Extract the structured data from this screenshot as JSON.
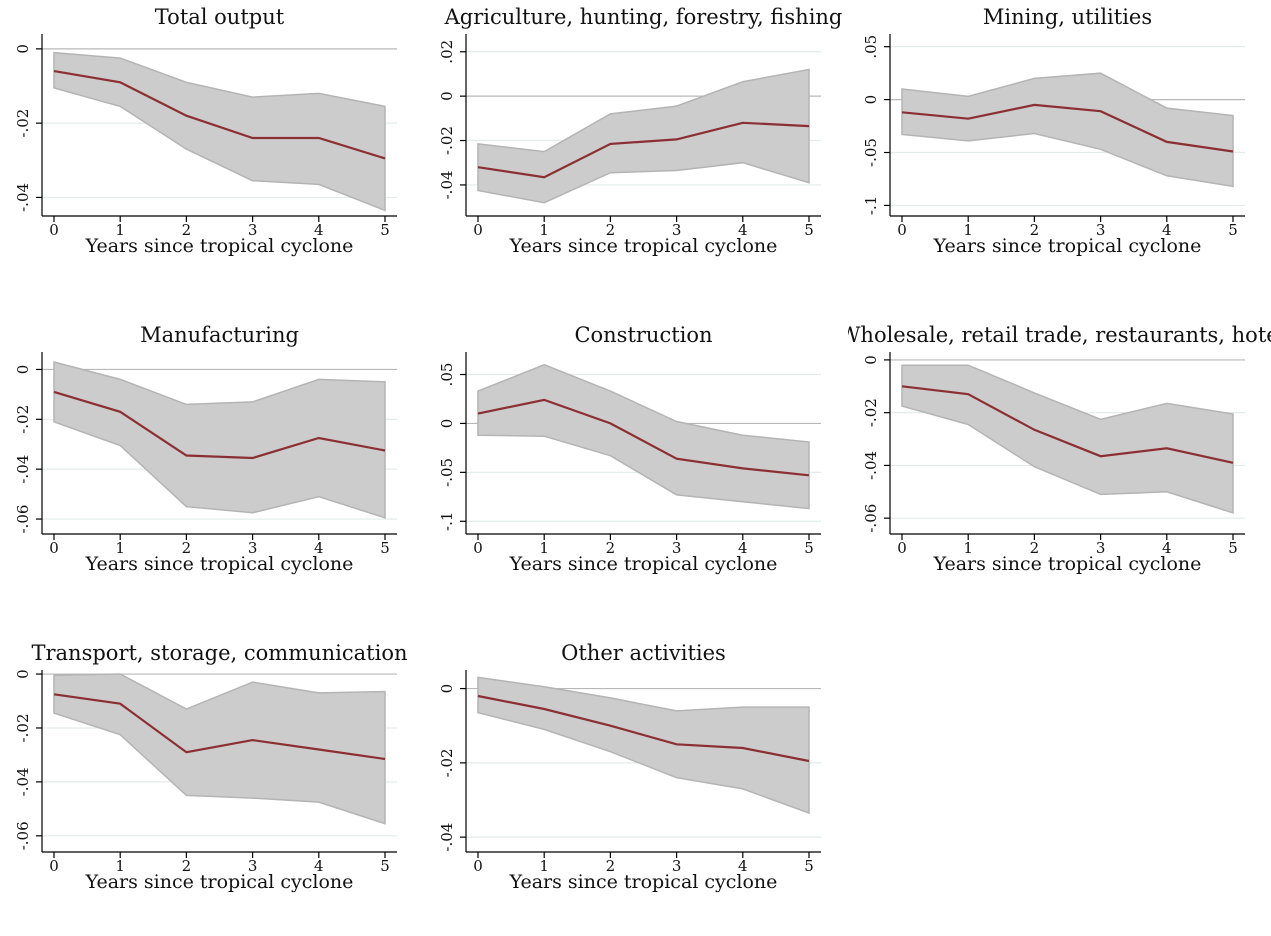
{
  "chart_data": [
    {
      "type": "line",
      "title": "Total output",
      "xlabel": "Years since tropical cyclone",
      "x": [
        0,
        1,
        2,
        3,
        4,
        5
      ],
      "ylim": [
        -0.045,
        0.004
      ],
      "yticks": [
        0,
        -0.02,
        -0.04
      ],
      "ytick_labels": [
        "0",
        "-.02",
        "-.04"
      ],
      "series": [
        {
          "role": "estimate",
          "values": [
            -0.006,
            -0.009,
            -0.018,
            -0.024,
            -0.024,
            -0.0295
          ]
        },
        {
          "role": "ci_upper",
          "values": [
            -0.001,
            -0.0025,
            -0.009,
            -0.013,
            -0.012,
            -0.0155
          ]
        },
        {
          "role": "ci_lower",
          "values": [
            -0.0105,
            -0.0155,
            -0.027,
            -0.0355,
            -0.0365,
            -0.0435
          ]
        }
      ]
    },
    {
      "type": "line",
      "title": "Agriculture, hunting, forestry, fishing",
      "xlabel": "Years since tropical cyclone",
      "x": [
        0,
        1,
        2,
        3,
        4,
        5
      ],
      "ylim": [
        -0.054,
        0.028
      ],
      "yticks": [
        0.02,
        0,
        -0.02,
        -0.04
      ],
      "ytick_labels": [
        ".02",
        "0",
        "-.02",
        "-.04"
      ],
      "series": [
        {
          "role": "estimate",
          "values": [
            -0.032,
            -0.0365,
            -0.0215,
            -0.0195,
            -0.012,
            -0.0135
          ]
        },
        {
          "role": "ci_upper",
          "values": [
            -0.0215,
            -0.025,
            -0.008,
            -0.0045,
            0.0065,
            0.012
          ]
        },
        {
          "role": "ci_lower",
          "values": [
            -0.0425,
            -0.048,
            -0.0345,
            -0.0335,
            -0.03,
            -0.039
          ]
        }
      ]
    },
    {
      "type": "line",
      "title": "Mining, utilities",
      "xlabel": "Years since tropical cyclone",
      "x": [
        0,
        1,
        2,
        3,
        4,
        5
      ],
      "ylim": [
        -0.11,
        0.062
      ],
      "yticks": [
        0.05,
        0,
        -0.05,
        -0.1
      ],
      "ytick_labels": [
        ".05",
        "0",
        "-.05",
        "-.1"
      ],
      "series": [
        {
          "role": "estimate",
          "values": [
            -0.012,
            -0.018,
            -0.005,
            -0.011,
            -0.04,
            -0.049
          ]
        },
        {
          "role": "ci_upper",
          "values": [
            0.01,
            0.003,
            0.02,
            0.025,
            -0.008,
            -0.015
          ]
        },
        {
          "role": "ci_lower",
          "values": [
            -0.033,
            -0.039,
            -0.032,
            -0.047,
            -0.072,
            -0.082
          ]
        }
      ]
    },
    {
      "type": "line",
      "title": "Manufacturing",
      "xlabel": "Years since tropical cyclone",
      "x": [
        0,
        1,
        2,
        3,
        4,
        5
      ],
      "ylim": [
        -0.066,
        0.007
      ],
      "yticks": [
        0,
        -0.02,
        -0.04,
        -0.06
      ],
      "ytick_labels": [
        "0",
        "-.02",
        "-.04",
        "-.06"
      ],
      "series": [
        {
          "role": "estimate",
          "values": [
            -0.009,
            -0.017,
            -0.0345,
            -0.0355,
            -0.0275,
            -0.0325
          ]
        },
        {
          "role": "ci_upper",
          "values": [
            0.003,
            -0.004,
            -0.014,
            -0.013,
            -0.004,
            -0.005
          ]
        },
        {
          "role": "ci_lower",
          "values": [
            -0.021,
            -0.0305,
            -0.055,
            -0.0575,
            -0.051,
            -0.0595
          ]
        }
      ]
    },
    {
      "type": "line",
      "title": "Construction",
      "xlabel": "Years since tropical cyclone",
      "x": [
        0,
        1,
        2,
        3,
        4,
        5
      ],
      "ylim": [
        -0.113,
        0.073
      ],
      "yticks": [
        0.05,
        0,
        -0.05,
        -0.1
      ],
      "ytick_labels": [
        ".05",
        "0",
        "-.05",
        "-.1"
      ],
      "series": [
        {
          "role": "estimate",
          "values": [
            0.01,
            0.024,
            0.0,
            -0.036,
            -0.046,
            -0.053
          ]
        },
        {
          "role": "ci_upper",
          "values": [
            0.033,
            0.06,
            0.033,
            0.002,
            -0.012,
            -0.019
          ]
        },
        {
          "role": "ci_lower",
          "values": [
            -0.012,
            -0.013,
            -0.033,
            -0.073,
            -0.08,
            -0.087
          ]
        }
      ]
    },
    {
      "type": "line",
      "title": "Wholesale, retail trade, restaurants, hotels",
      "xlabel": "Years since tropical cyclone",
      "x": [
        0,
        1,
        2,
        3,
        4,
        5
      ],
      "ylim": [
        -0.066,
        0.003
      ],
      "yticks": [
        0,
        -0.02,
        -0.04,
        -0.06
      ],
      "ytick_labels": [
        "0",
        "-.02",
        "-.04",
        "-.06"
      ],
      "series": [
        {
          "role": "estimate",
          "values": [
            -0.01,
            -0.013,
            -0.0265,
            -0.0365,
            -0.0335,
            -0.039
          ]
        },
        {
          "role": "ci_upper",
          "values": [
            -0.002,
            -0.002,
            -0.0125,
            -0.0225,
            -0.0165,
            -0.0205
          ]
        },
        {
          "role": "ci_lower",
          "values": [
            -0.0175,
            -0.0245,
            -0.0405,
            -0.051,
            -0.05,
            -0.058
          ]
        }
      ]
    },
    {
      "type": "line",
      "title": "Transport, storage, communication",
      "xlabel": "Years since tropical cyclone",
      "x": [
        0,
        1,
        2,
        3,
        4,
        5
      ],
      "ylim": [
        -0.066,
        0.0015
      ],
      "yticks": [
        0,
        -0.02,
        -0.04,
        -0.06
      ],
      "ytick_labels": [
        "0",
        "-.02",
        "-.04",
        "-.06"
      ],
      "series": [
        {
          "role": "estimate",
          "values": [
            -0.0075,
            -0.011,
            -0.029,
            -0.0245,
            -0.028,
            -0.0315
          ]
        },
        {
          "role": "ci_upper",
          "values": [
            -0.0005,
            0.0,
            -0.013,
            -0.003,
            -0.007,
            -0.0065
          ]
        },
        {
          "role": "ci_lower",
          "values": [
            -0.0145,
            -0.0225,
            -0.045,
            -0.046,
            -0.0475,
            -0.0555
          ]
        }
      ]
    },
    {
      "type": "line",
      "title": "Other activities",
      "xlabel": "Years since tropical cyclone",
      "x": [
        0,
        1,
        2,
        3,
        4,
        5
      ],
      "ylim": [
        -0.044,
        0.005
      ],
      "yticks": [
        0,
        -0.02,
        -0.04
      ],
      "ytick_labels": [
        "0",
        "-.02",
        "-.04"
      ],
      "series": [
        {
          "role": "estimate",
          "values": [
            -0.002,
            -0.0055,
            -0.01,
            -0.015,
            -0.016,
            -0.0195
          ]
        },
        {
          "role": "ci_upper",
          "values": [
            0.003,
            0.0005,
            -0.0025,
            -0.006,
            -0.005,
            -0.005
          ]
        },
        {
          "role": "ci_lower",
          "values": [
            -0.0065,
            -0.011,
            -0.017,
            -0.024,
            -0.027,
            -0.0335
          ]
        }
      ]
    }
  ],
  "colors": {
    "estimate": "#8b2f33",
    "band_fill": "#cccccc",
    "band_edge": "#b4b4b4",
    "zero_line": "#b8b8b8",
    "grid": "#e3ece9"
  },
  "grid": true
}
